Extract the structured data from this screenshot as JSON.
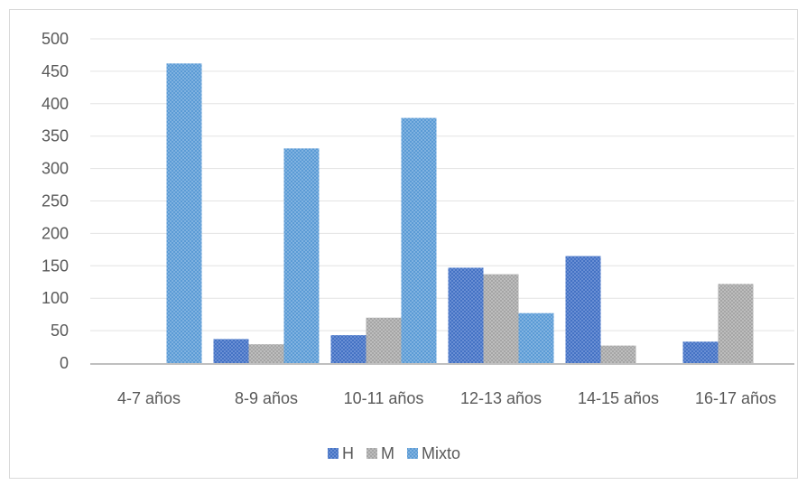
{
  "chart_data": {
    "type": "bar",
    "title": "",
    "xlabel": "",
    "ylabel": "",
    "categories": [
      "4-7 años",
      "8-9 años",
      "10-11 años",
      "12-13 años",
      "14-15 años",
      "16-17 años"
    ],
    "series": [
      {
        "name": "H",
        "values": [
          0,
          37,
          43,
          147,
          165,
          33
        ],
        "color": "#4472c4"
      },
      {
        "name": "M",
        "values": [
          0,
          29,
          70,
          137,
          27,
          122
        ],
        "color": "#a5a5a5"
      },
      {
        "name": "Mixto",
        "values": [
          462,
          331,
          378,
          77,
          0,
          0
        ],
        "color": "#5b9bd5"
      }
    ],
    "ylim": [
      0,
      500
    ],
    "yticks": [
      0,
      50,
      100,
      150,
      200,
      250,
      300,
      350,
      400,
      450,
      500
    ],
    "grid": true,
    "legend": "bottom"
  }
}
